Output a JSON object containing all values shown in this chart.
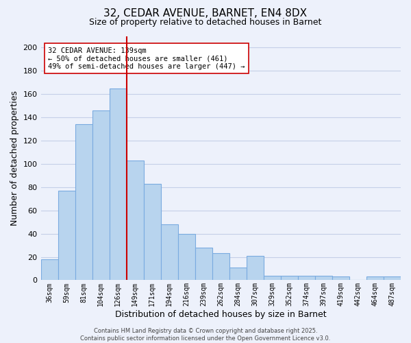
{
  "title": "32, CEDAR AVENUE, BARNET, EN4 8DX",
  "subtitle": "Size of property relative to detached houses in Barnet",
  "xlabel": "Distribution of detached houses by size in Barnet",
  "ylabel": "Number of detached properties",
  "bar_labels": [
    "36sqm",
    "59sqm",
    "81sqm",
    "104sqm",
    "126sqm",
    "149sqm",
    "171sqm",
    "194sqm",
    "216sqm",
    "239sqm",
    "262sqm",
    "284sqm",
    "307sqm",
    "329sqm",
    "352sqm",
    "374sqm",
    "397sqm",
    "419sqm",
    "442sqm",
    "464sqm",
    "487sqm"
  ],
  "bar_values": [
    18,
    77,
    134,
    146,
    165,
    103,
    83,
    48,
    40,
    28,
    23,
    11,
    21,
    4,
    4,
    4,
    4,
    3,
    0,
    3,
    3
  ],
  "bar_color": "#b8d4ee",
  "bar_edge_color": "#7aabe0",
  "vline_color": "#cc0000",
  "vline_pos": 4.5,
  "annotation_line1": "32 CEDAR AVENUE: 139sqm",
  "annotation_line2": "← 50% of detached houses are smaller (461)",
  "annotation_line3": "49% of semi-detached houses are larger (447) →",
  "ylim": [
    0,
    210
  ],
  "yticks": [
    0,
    20,
    40,
    60,
    80,
    100,
    120,
    140,
    160,
    180,
    200
  ],
  "background_color": "#edf1fb",
  "grid_color": "#c5cfe8",
  "footer_line1": "Contains HM Land Registry data © Crown copyright and database right 2025.",
  "footer_line2": "Contains public sector information licensed under the Open Government Licence v3.0."
}
